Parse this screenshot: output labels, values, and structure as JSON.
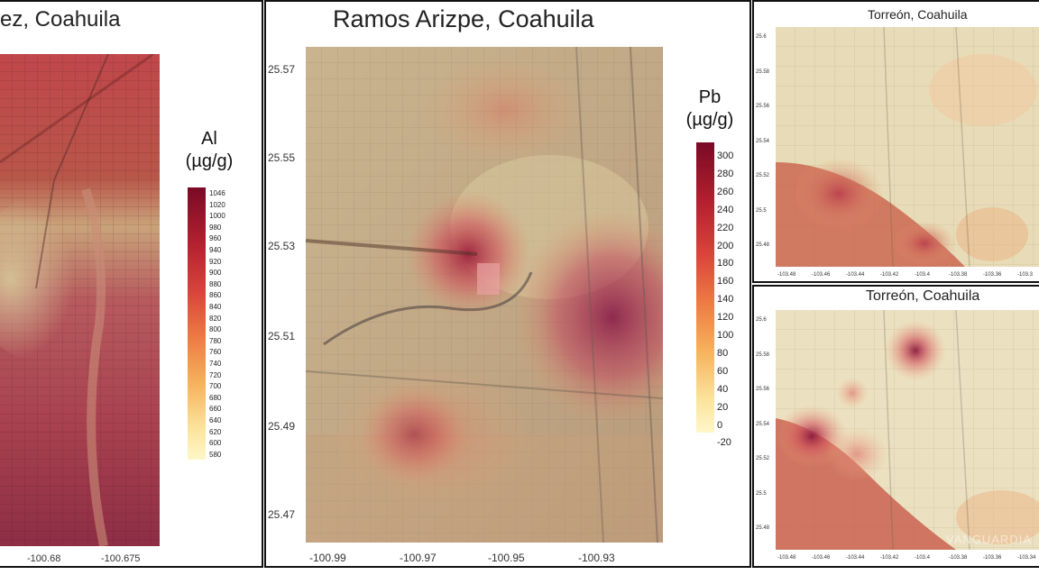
{
  "panels": {
    "left": {
      "title": "ez, Coahuila",
      "x_ticks": [
        "-100.68",
        "-100.675"
      ],
      "legend": {
        "element": "Al",
        "unit": "(µg/g)",
        "labels": [
          "1046",
          "1020",
          "1000",
          "980",
          "960",
          "940",
          "920",
          "900",
          "880",
          "860",
          "840",
          "820",
          "800",
          "780",
          "760",
          "740",
          "720",
          "700",
          "680",
          "660",
          "640",
          "620",
          "600",
          "580"
        ]
      }
    },
    "center": {
      "title": "Ramos Arizpe, Coahuila",
      "y_ticks": [
        "25.57",
        "25.55",
        "25.53",
        "25.51",
        "25.49",
        "25.47"
      ],
      "x_ticks": [
        "-100.99",
        "-100.97",
        "-100.95",
        "-100.93"
      ],
      "legend": {
        "element": "Pb",
        "unit": "(µg/g)",
        "labels": [
          "300",
          "280",
          "260",
          "240",
          "220",
          "200",
          "180",
          "160",
          "140",
          "120",
          "100",
          "80",
          "60",
          "40",
          "20",
          "0",
          "-20"
        ]
      }
    },
    "right_top": {
      "title": "Torreón, Coahuila",
      "y_ticks": [
        "25.6",
        "25.58",
        "25.56",
        "25.54",
        "25.52",
        "25.5",
        "25.48"
      ],
      "x_ticks": [
        "-103.48",
        "-103.46",
        "-103.44",
        "-103.42",
        "-103.4",
        "-103.38",
        "-103.36",
        "-103.3"
      ]
    },
    "right_bottom": {
      "title": "Torreón, Coahuila",
      "y_ticks": [
        "25.6",
        "25.58",
        "25.56",
        "25.54",
        "25.52",
        "25.5",
        "25.48"
      ],
      "x_ticks": [
        "-103.48",
        "-103.46",
        "-103.44",
        "-103.42",
        "-103.4",
        "-103.38",
        "-103.36",
        "-103.34"
      ],
      "watermark": "VANGUARDIA"
    }
  },
  "colors": {
    "scale_low": "#fff7c9",
    "scale_mid": "#f19a4e",
    "scale_high": "#7a0a25",
    "frame": "#111111"
  }
}
